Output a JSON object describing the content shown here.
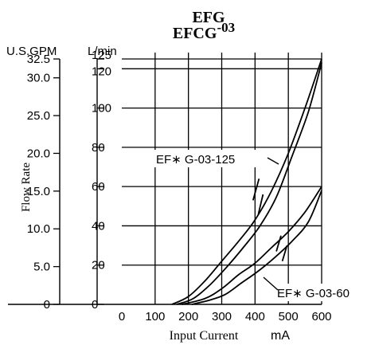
{
  "chart_data": {
    "type": "line",
    "title_line1": "EFG",
    "title_line2_base": "EFCG",
    "title_line2_sup": "-03",
    "xlabel": "Input Current",
    "xunit": "mA",
    "ylabel": "Flow Rate",
    "y_left_unit": "U.S.GPM",
    "y_right_unit": "L/min",
    "xlim": [
      0,
      600
    ],
    "ylim": [
      0,
      125
    ],
    "x_ticks": [
      "0",
      "100",
      "200",
      "300",
      "400",
      "500",
      "600"
    ],
    "x_tick_values": [
      0,
      100,
      200,
      300,
      400,
      500,
      600
    ],
    "lmin_ticks": [
      "0",
      "20",
      "40",
      "60",
      "80",
      "100",
      "120",
      "125"
    ],
    "lmin_tick_values": [
      0,
      20,
      40,
      60,
      80,
      100,
      120,
      125
    ],
    "gpm_ticks": [
      "0",
      "5.0",
      "10.0",
      "15.0",
      "20.0",
      "25.0",
      "30.0",
      "32.5"
    ],
    "gpm_tick_values": [
      0,
      5,
      10,
      15,
      20,
      25,
      30,
      32.5
    ],
    "series": [
      {
        "name": "EF∗ G-03-125",
        "upper": {
          "x": [
            150,
            200,
            250,
            300,
            350,
            400,
            450,
            500,
            550,
            600
          ],
          "y": [
            0,
            4,
            12,
            22,
            32,
            43,
            58,
            77,
            100,
            125
          ]
        },
        "lower": {
          "x": [
            165,
            215,
            265,
            315,
            365,
            415,
            465,
            510,
            560,
            600
          ],
          "y": [
            0,
            3,
            10,
            19,
            29,
            40,
            55,
            75,
            98,
            123
          ]
        }
      },
      {
        "name": "EF∗ G-03-60",
        "upper": {
          "x": [
            180,
            250,
            300,
            350,
            400,
            450,
            500,
            550,
            600
          ],
          "y": [
            0,
            3,
            8,
            15,
            21,
            29,
            37,
            47,
            60
          ]
        },
        "lower": {
          "x": [
            210,
            260,
            310,
            360,
            410,
            460,
            510,
            560,
            600
          ],
          "y": [
            0,
            2,
            5,
            11,
            17,
            24,
            32,
            42,
            58
          ]
        }
      }
    ],
    "hysteresis_marks": [
      {
        "x": [
          394,
          412
        ],
        "y": [
          53,
          64
        ]
      },
      {
        "x": [
          410,
          424
        ],
        "y": [
          46,
          56
        ]
      },
      {
        "x": [
          464,
          478
        ],
        "y": [
          27,
          35
        ]
      },
      {
        "x": [
          482,
          496
        ],
        "y": [
          22,
          30
        ]
      }
    ],
    "grid": true
  }
}
